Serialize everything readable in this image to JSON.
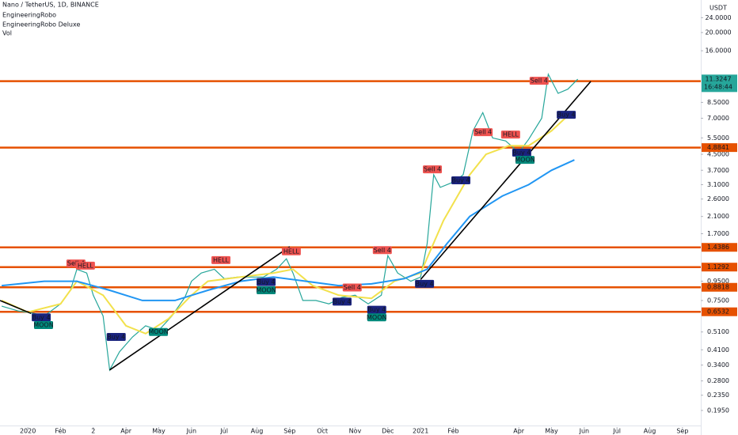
{
  "chart_data": {
    "type": "line",
    "title": "Nano / TetherUS, 1D, BINANCE",
    "indicators": [
      "EngineeringRobo",
      "EngineeringRobo Deluxe",
      "Vol"
    ],
    "y_unit": "USDT",
    "log_y": true,
    "xlim": [
      -0.85,
      20.56
    ],
    "ylim": [
      0.159,
      29.8
    ],
    "xticks": [
      {
        "value": 0,
        "label": "2020"
      },
      {
        "value": 1,
        "label": "Feb"
      },
      {
        "value": 2,
        "label": "2"
      },
      {
        "value": 3,
        "label": "Apr"
      },
      {
        "value": 4,
        "label": "May"
      },
      {
        "value": 5,
        "label": "Jun"
      },
      {
        "value": 6,
        "label": "Jul"
      },
      {
        "value": 7,
        "label": "Aug"
      },
      {
        "value": 8,
        "label": "Sep"
      },
      {
        "value": 9,
        "label": "Oct"
      },
      {
        "value": 10,
        "label": "Nov"
      },
      {
        "value": 11,
        "label": "Dec"
      },
      {
        "value": 12,
        "label": "2021"
      },
      {
        "value": 13,
        "label": "Feb"
      },
      {
        "value": 15,
        "label": "Apr"
      },
      {
        "value": 16,
        "label": "May"
      },
      {
        "value": 17,
        "label": "Jun"
      },
      {
        "value": 18,
        "label": "Jul"
      },
      {
        "value": 19,
        "label": "Aug"
      },
      {
        "value": 20,
        "label": "Sep"
      }
    ],
    "yticks": [
      {
        "value": 24,
        "label": "24.0000"
      },
      {
        "value": 20,
        "label": "20.0000"
      },
      {
        "value": 16,
        "label": "16.0000"
      },
      {
        "value": 8.5,
        "label": "8.5000"
      },
      {
        "value": 7,
        "label": "7.0000"
      },
      {
        "value": 5.5,
        "label": "5.5000"
      },
      {
        "value": 4.5,
        "label": "4.5000"
      },
      {
        "value": 3.7,
        "label": "3.7000"
      },
      {
        "value": 3.1,
        "label": "3.1000"
      },
      {
        "value": 2.6,
        "label": "2.6000"
      },
      {
        "value": 2.1,
        "label": "2.1000"
      },
      {
        "value": 1.7,
        "label": "1.7000"
      },
      {
        "value": 0.95,
        "label": "0.9500"
      },
      {
        "value": 0.75,
        "label": "0.7500"
      },
      {
        "value": 0.51,
        "label": "0.5100"
      },
      {
        "value": 0.41,
        "label": "0.4100"
      },
      {
        "value": 0.34,
        "label": "0.3400"
      },
      {
        "value": 0.28,
        "label": "0.2800"
      },
      {
        "value": 0.235,
        "label": "0.2350"
      },
      {
        "value": 0.195,
        "label": "0.1950"
      }
    ],
    "series": [
      {
        "color": "#26a69a",
        "x": [
          -0.8,
          -0.3,
          0.2,
          0.5,
          1.0,
          1.3,
          1.5,
          1.8,
          2.0,
          2.3,
          2.5,
          2.8,
          3.2,
          3.6,
          4.0,
          4.4,
          4.8,
          5.0,
          5.3,
          5.7,
          6.0,
          6.4,
          6.8,
          7.2,
          7.6,
          7.9,
          8.1,
          8.4,
          8.8,
          9.2,
          9.6,
          10.0,
          10.4,
          10.8,
          11.0,
          11.3,
          11.7,
          12.0,
          12.2,
          12.4,
          12.6,
          13.0,
          13.3,
          13.6,
          13.9,
          14.2,
          14.6,
          15.0,
          15.3,
          15.7,
          15.9,
          16.2,
          16.5,
          16.8
        ],
        "values": [
          0.7,
          0.66,
          0.64,
          0.62,
          0.72,
          0.85,
          1.1,
          1.05,
          0.8,
          0.62,
          0.32,
          0.4,
          0.48,
          0.55,
          0.52,
          0.62,
          0.78,
          0.95,
          1.05,
          1.1,
          0.98,
          1.0,
          1.0,
          1.0,
          1.1,
          1.25,
          1.05,
          0.75,
          0.75,
          0.72,
          0.78,
          0.8,
          0.72,
          0.8,
          1.3,
          1.05,
          0.95,
          1.0,
          1.5,
          3.5,
          3.0,
          3.2,
          3.5,
          6.0,
          7.5,
          5.5,
          5.3,
          4.6,
          5.4,
          7.0,
          12,
          9.5,
          10,
          11.3
        ]
      },
      {
        "color": "#f2e14c",
        "x": [
          -0.8,
          0,
          1,
          1.5,
          2.3,
          3,
          3.6,
          4.3,
          5,
          5.5,
          6.5,
          7.5,
          8.1,
          8.7,
          9.5,
          10.5,
          11.2,
          12,
          12.7,
          13.5,
          14.0,
          14.7,
          15.3,
          16,
          16.6
        ],
        "values": [
          0.75,
          0.65,
          0.72,
          0.95,
          0.8,
          0.55,
          0.5,
          0.6,
          0.8,
          0.95,
          1.0,
          1.05,
          1.1,
          0.9,
          0.8,
          0.77,
          0.95,
          1.05,
          2.0,
          3.5,
          4.5,
          5.0,
          5.0,
          6.0,
          7.5
        ]
      },
      {
        "color": "#2196f3",
        "x": [
          -0.8,
          0.5,
          1.5,
          2.5,
          3.5,
          4.5,
          5.5,
          6.5,
          7.5,
          8.5,
          9.5,
          10.5,
          11.5,
          12.2,
          12.8,
          13.5,
          14.5,
          15.3,
          16.0,
          16.7
        ],
        "values": [
          0.9,
          0.95,
          0.95,
          0.85,
          0.75,
          0.75,
          0.85,
          0.95,
          1.0,
          0.95,
          0.9,
          0.92,
          0.98,
          1.1,
          1.5,
          2.1,
          2.7,
          3.1,
          3.7,
          4.2
        ]
      }
    ],
    "levels": [
      {
        "value": 11.0277,
        "color": "#e65100"
      },
      {
        "value": 4.8841,
        "color": "#e65100"
      },
      {
        "value": 1.4386,
        "color": "#e65100"
      },
      {
        "value": 1.1292,
        "color": "#e65100"
      },
      {
        "value": 0.8818,
        "color": "#e65100"
      },
      {
        "value": 0.6532,
        "color": "#e65100"
      }
    ],
    "trendlines": [
      {
        "x": [
          -0.85,
          0.1
        ],
        "y": [
          0.75,
          0.64
        ]
      },
      {
        "x": [
          2.5,
          8.0
        ],
        "y": [
          0.32,
          1.45
        ]
      },
      {
        "x": [
          12.0,
          17.2
        ],
        "y": [
          0.97,
          11.0
        ]
      }
    ],
    "annotations": [
      {
        "text": "Sell 4",
        "x": 1.47,
        "y": 1.18,
        "color": "#ef5350"
      },
      {
        "text": "HELL",
        "x": 1.76,
        "y": 1.15,
        "color": "#ef5350"
      },
      {
        "text": "Buy 4",
        "x": 0.41,
        "y": 0.61,
        "color": "#1a237e"
      },
      {
        "text": "MOON",
        "x": 0.48,
        "y": 0.555,
        "color": "#00897b"
      },
      {
        "text": "Buy 4",
        "x": 2.7,
        "y": 0.48,
        "color": "#1a237e"
      },
      {
        "text": "MOON",
        "x": 3.99,
        "y": 0.51,
        "color": "#00897b"
      },
      {
        "text": "HELL",
        "x": 5.9,
        "y": 1.23,
        "color": "#ef5350"
      },
      {
        "text": "Buy 4",
        "x": 7.28,
        "y": 0.94,
        "color": "#1a237e"
      },
      {
        "text": "MOON",
        "x": 7.28,
        "y": 0.85,
        "color": "#00897b"
      },
      {
        "text": "HELL",
        "x": 8.05,
        "y": 1.37,
        "color": "#ef5350"
      },
      {
        "text": "Sell 4",
        "x": 9.91,
        "y": 0.88,
        "color": "#ef5350"
      },
      {
        "text": "Buy 4",
        "x": 9.6,
        "y": 0.74,
        "color": "#1a237e"
      },
      {
        "text": "Buy 4",
        "x": 10.66,
        "y": 0.67,
        "color": "#1a237e"
      },
      {
        "text": "MOON",
        "x": 10.66,
        "y": 0.61,
        "color": "#00897b"
      },
      {
        "text": "Sell 4",
        "x": 10.83,
        "y": 1.39,
        "color": "#ef5350"
      },
      {
        "text": "Buy 4",
        "x": 12.12,
        "y": 0.92,
        "color": "#1a237e"
      },
      {
        "text": "Sell 4",
        "x": 12.36,
        "y": 3.74,
        "color": "#ef5350"
      },
      {
        "text": "Buy 4",
        "x": 13.23,
        "y": 3.27,
        "color": "#1a237e"
      },
      {
        "text": "Sell 4",
        "x": 13.91,
        "y": 5.9,
        "color": "#ef5350"
      },
      {
        "text": "HELL",
        "x": 14.75,
        "y": 5.73,
        "color": "#ef5350"
      },
      {
        "text": "Buy 4",
        "x": 15.09,
        "y": 4.59,
        "color": "#1a237e"
      },
      {
        "text": "MOON",
        "x": 15.19,
        "y": 4.2,
        "color": "#00897b"
      },
      {
        "text": "Sell 4",
        "x": 15.62,
        "y": 11.08,
        "color": "#ef5350"
      },
      {
        "text": "Buy 4",
        "x": 16.45,
        "y": 7.3,
        "color": "#1a237e"
      }
    ],
    "last_price": {
      "value": 11.3247,
      "countdown": "16:48:44",
      "color": "#26a69a"
    }
  }
}
